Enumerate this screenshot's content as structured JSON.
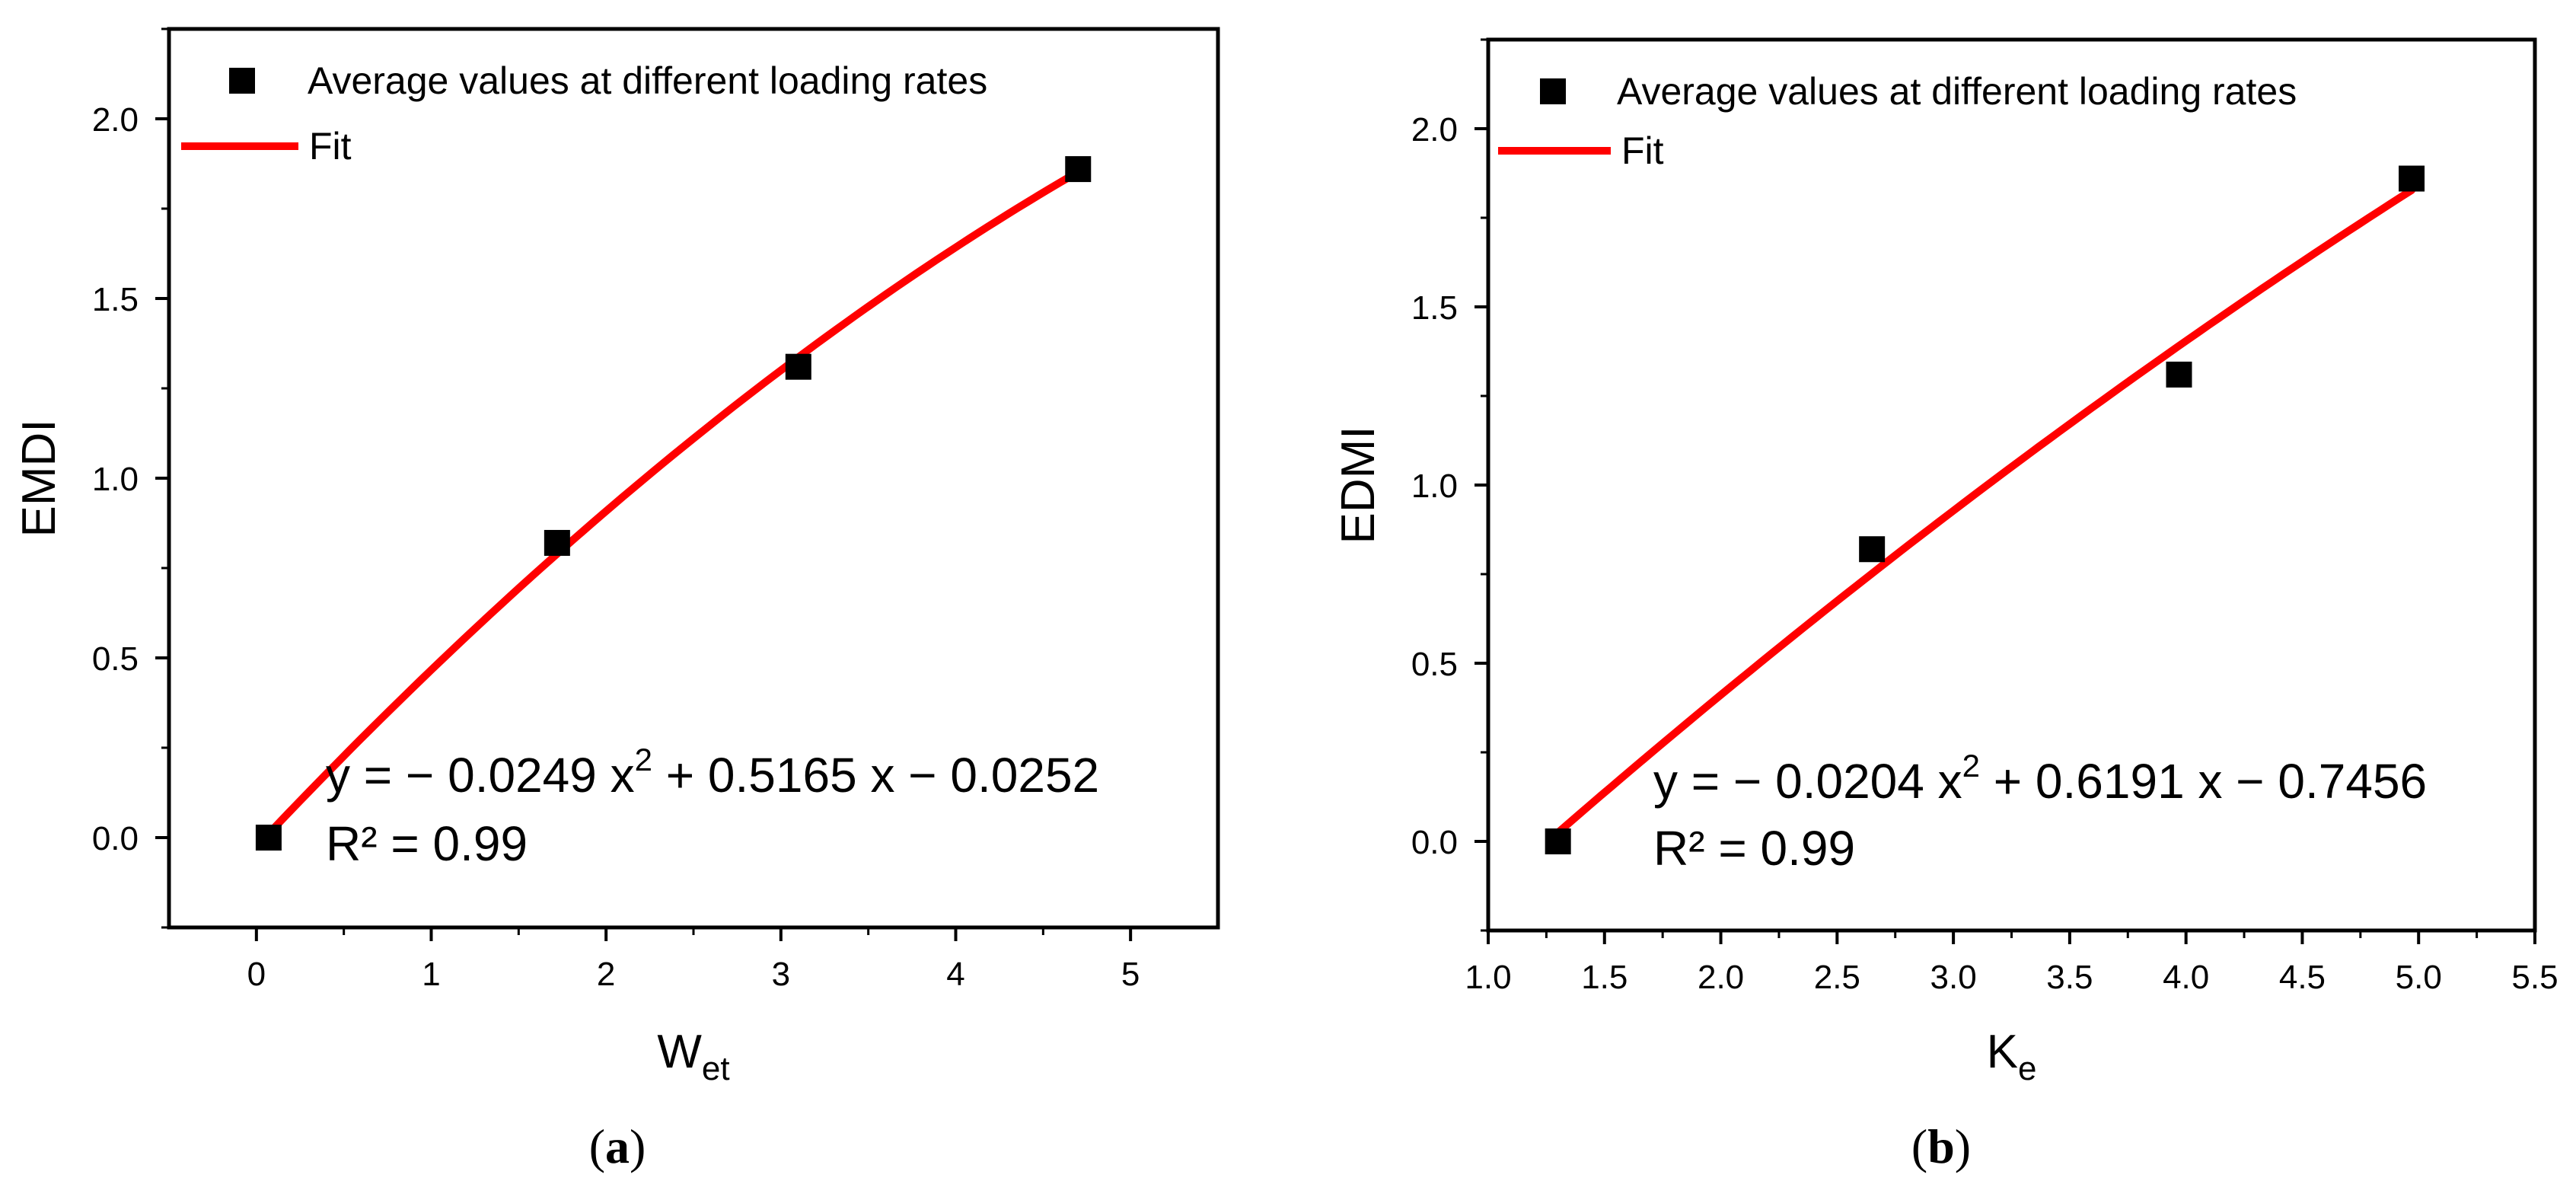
{
  "colors": {
    "marker": "#000000",
    "fit_line": "#ff0000",
    "axes": "#000000"
  },
  "chart_data": [
    {
      "type": "scatter",
      "panel": "(a)",
      "panel_letter": "a",
      "xlabel": "W",
      "xlabel_sub": "et",
      "ylabel": "EMDI",
      "xlim": [
        -0.5,
        5.5
      ],
      "ylim": [
        -0.25,
        2.25
      ],
      "xticks": [
        0,
        1,
        2,
        3,
        4,
        5
      ],
      "xtick_labels": [
        "0",
        "1",
        "2",
        "3",
        "4",
        "5"
      ],
      "yticks": [
        0.0,
        0.5,
        1.0,
        1.5,
        2.0
      ],
      "ytick_labels": [
        "0.0",
        "0.5",
        "1.0",
        "1.5",
        "2.0"
      ],
      "legend": {
        "placement": "top-left",
        "entries": [
          "Average values at different loading rates",
          "Fit"
        ]
      },
      "series": [
        {
          "name": "Average values at different loading rates",
          "type": "scatter",
          "marker": "square",
          "x": [
            0.07,
            1.72,
            3.1,
            4.7
          ],
          "y": [
            0.0,
            0.82,
            1.31,
            1.86
          ]
        },
        {
          "name": "Fit",
          "type": "line",
          "coefficients": {
            "a": -0.0249,
            "b": 0.5165,
            "c": -0.0252
          },
          "x_range": [
            0.07,
            4.7
          ]
        }
      ],
      "equation": {
        "prefix": "y = − 0.0249 x",
        "exponent": "2",
        "suffix": " + 0.5165 x − 0.0252",
        "r2": "R² = 0.99"
      }
    },
    {
      "type": "scatter",
      "panel": "(b)",
      "panel_letter": "b",
      "xlabel": "K",
      "xlabel_sub": "e",
      "ylabel": "EDMI",
      "xlim": [
        1.0,
        5.5
      ],
      "ylim": [
        -0.25,
        2.25
      ],
      "xticks": [
        1.0,
        1.5,
        2.0,
        2.5,
        3.0,
        3.5,
        4.0,
        4.5,
        5.0,
        5.5
      ],
      "xtick_labels": [
        "1.0",
        "1.5",
        "2.0",
        "2.5",
        "3.0",
        "3.5",
        "4.0",
        "4.5",
        "5.0",
        "5.5"
      ],
      "yticks": [
        0.0,
        0.5,
        1.0,
        1.5,
        2.0
      ],
      "ytick_labels": [
        "0.0",
        "0.5",
        "1.0",
        "1.5",
        "2.0"
      ],
      "legend": {
        "placement": "top-left",
        "entries": [
          "Average values at different loading rates",
          "Fit"
        ]
      },
      "series": [
        {
          "name": "Average values at different loading rates",
          "type": "scatter",
          "marker": "square",
          "x": [
            1.3,
            2.65,
            3.97,
            4.97
          ],
          "y": [
            0.0,
            0.82,
            1.31,
            1.86
          ]
        },
        {
          "name": "Fit",
          "type": "line",
          "coefficients": {
            "a": -0.0204,
            "b": 0.6191,
            "c": -0.7456
          },
          "x_range": [
            1.3,
            4.97
          ]
        }
      ],
      "equation": {
        "prefix": "y = − 0.0204 x",
        "exponent": "2",
        "suffix": " + 0.6191 x − 0.7456",
        "r2": "R² = 0.99"
      }
    }
  ]
}
